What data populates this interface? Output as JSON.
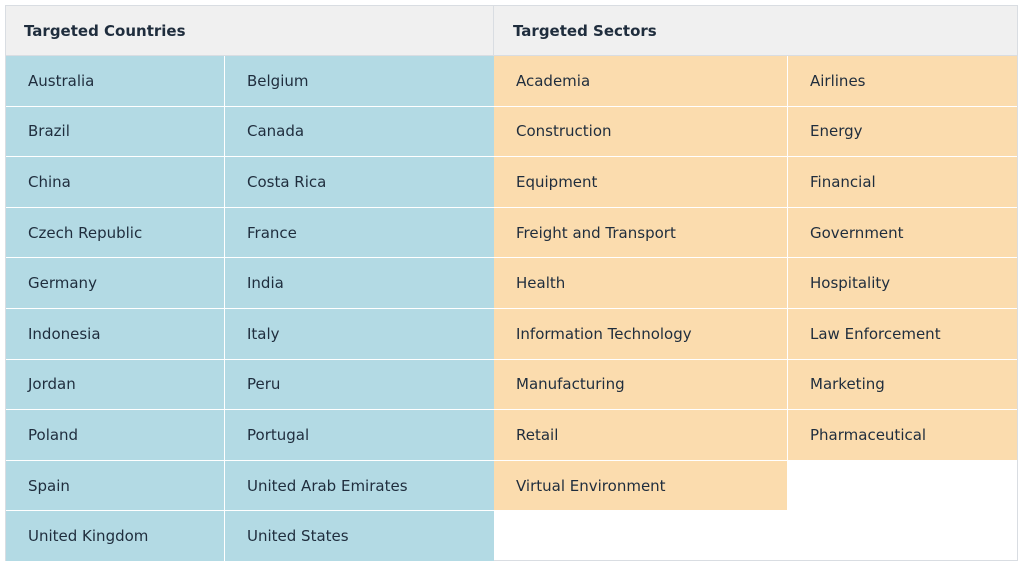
{
  "headers": {
    "countries": "Targeted Countries",
    "sectors": "Targeted Sectors"
  },
  "colors": {
    "countries_bg": "#b3dae4",
    "sectors_bg": "#fbdcae",
    "header_bg": "#f0f0f0"
  },
  "countries": {
    "left": [
      "Australia",
      "Brazil",
      "China",
      "Czech Republic",
      "Germany",
      "Indonesia",
      "Jordan",
      "Poland",
      "Spain",
      "United Kingdom"
    ],
    "right": [
      "Belgium",
      "Canada",
      "Costa Rica",
      "France",
      "India",
      "Italy",
      "Peru",
      "Portugal",
      "United Arab Emirates",
      "United States"
    ]
  },
  "sectors": {
    "left": [
      "Academia",
      "Construction",
      "Equipment",
      "Freight and Transport",
      "Health",
      "Information Technology",
      "Manufacturing",
      "Retail",
      "Virtual Environment"
    ],
    "right": [
      "Airlines",
      "Energy",
      "Financial",
      "Government",
      "Hospitality",
      "Law Enforcement",
      "Marketing",
      "Pharmaceutical"
    ]
  }
}
